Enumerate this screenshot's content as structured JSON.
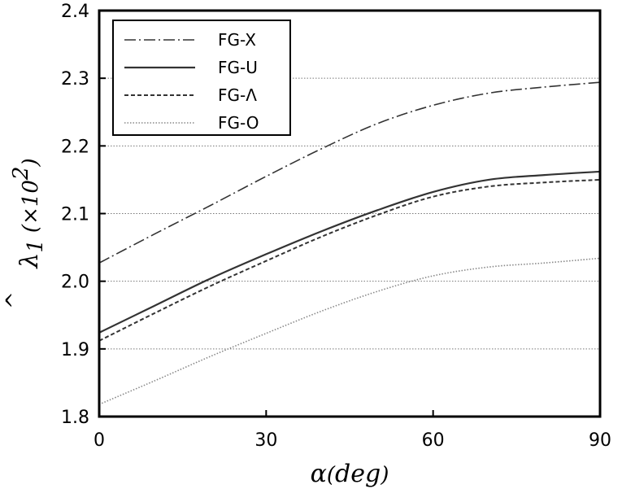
{
  "chart_data": {
    "type": "line",
    "title": "",
    "xlabel": "α(deg)",
    "ylabel": "λ̂₁ (×10²)",
    "ylabel_parts": {
      "lambda": "λ",
      "hat": "^",
      "sub": "1",
      "open": "(×10",
      "sup": "2",
      "close": ")"
    },
    "xlabel_parts": {
      "alpha": "α",
      "deg": "deg"
    },
    "xlim": [
      0,
      90
    ],
    "ylim": [
      1.8,
      2.4
    ],
    "x_ticks": [
      "0",
      "30",
      "60",
      "90"
    ],
    "y_ticks": [
      "1.8",
      "1.9",
      "2.0",
      "2.1",
      "2.2",
      "2.3",
      "2.4"
    ],
    "grid": "horizontal-dotted",
    "legend_position": "top-left",
    "x": [
      0,
      10,
      20,
      30,
      40,
      50,
      60,
      70,
      80,
      90
    ],
    "series": [
      {
        "name": "FG-X",
        "style": "dash-dot",
        "color": "#333333",
        "values": [
          2.027,
          2.07,
          2.112,
          2.155,
          2.196,
          2.233,
          2.26,
          2.278,
          2.287,
          2.294
        ]
      },
      {
        "name": "FG-U",
        "style": "solid",
        "color": "#333333",
        "values": [
          1.924,
          1.964,
          2.004,
          2.04,
          2.074,
          2.105,
          2.132,
          2.15,
          2.157,
          2.162
        ]
      },
      {
        "name": "FG-Λ",
        "style": "dashed",
        "color": "#333333",
        "values": [
          1.912,
          1.953,
          1.993,
          2.03,
          2.066,
          2.098,
          2.125,
          2.14,
          2.146,
          2.15
        ]
      },
      {
        "name": "FG-O",
        "style": "dotted",
        "color": "#888888",
        "values": [
          1.818,
          1.853,
          1.889,
          1.923,
          1.956,
          1.985,
          2.008,
          2.021,
          2.027,
          2.034
        ]
      }
    ]
  }
}
